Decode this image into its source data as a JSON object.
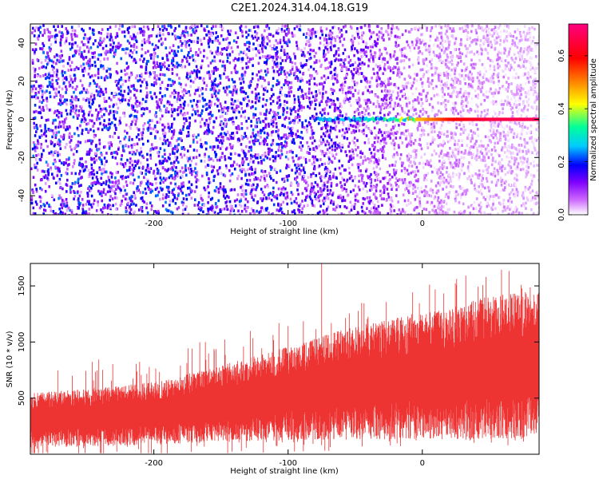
{
  "chart_data": [
    {
      "type": "heatmap",
      "title": "C2E1.2024.314.04.18.G19",
      "xlabel": "Height of straight line (km)",
      "ylabel": "Frequency (Hz)",
      "xlim": [
        -292,
        87
      ],
      "ylim": [
        -50,
        50
      ],
      "x_ticks": [
        -200,
        -100,
        0
      ],
      "y_ticks": [
        -40,
        -20,
        0,
        20,
        40
      ],
      "colorbar": {
        "label": "Normalized spectral amplitude",
        "range": [
          0.0,
          0.72
        ],
        "ticks": [
          0.0,
          0.2,
          0.4,
          0.6
        ],
        "colormap": [
          "#ffffff",
          "#cc66ff",
          "#7f00ff",
          "#0000ff",
          "#00ccff",
          "#00ff99",
          "#ffff00",
          "#ff8000",
          "#ff0000",
          "#ff0080"
        ]
      },
      "background_amplitude": [
        {
          "x": -292,
          "value": 0.16
        },
        {
          "x": -100,
          "value": 0.15
        },
        {
          "x": -40,
          "value": 0.1
        },
        {
          "x": 0,
          "value": 0.05
        },
        {
          "x": 87,
          "value": 0.03
        }
      ],
      "signal_line": {
        "frequency": 0,
        "points": [
          {
            "x": -80,
            "value": 0.22
          },
          {
            "x": -60,
            "value": 0.28
          },
          {
            "x": -40,
            "value": 0.3
          },
          {
            "x": -20,
            "value": 0.38
          },
          {
            "x": -5,
            "value": 0.45
          },
          {
            "x": 20,
            "value": 0.58
          },
          {
            "x": 50,
            "value": 0.66
          },
          {
            "x": 87,
            "value": 0.68
          }
        ]
      }
    },
    {
      "type": "area",
      "xlabel": "Height of straight line (km)",
      "ylabel": "SNR (10 * v/v)",
      "xlim": [
        -292,
        87
      ],
      "ylim": [
        0,
        1700
      ],
      "x_ticks": [
        -200,
        -100,
        0
      ],
      "y_ticks": [
        500,
        1000,
        1500
      ],
      "color": "#ee3333",
      "envelope": [
        {
          "x": -292,
          "lower": 80,
          "upper": 520
        },
        {
          "x": -250,
          "lower": 90,
          "upper": 560
        },
        {
          "x": -200,
          "lower": 110,
          "upper": 620
        },
        {
          "x": -150,
          "lower": 140,
          "upper": 760
        },
        {
          "x": -100,
          "lower": 160,
          "upper": 920
        },
        {
          "x": -50,
          "lower": 180,
          "upper": 1100
        },
        {
          "x": 0,
          "lower": 180,
          "upper": 1200
        },
        {
          "x": 50,
          "lower": 190,
          "upper": 1350
        },
        {
          "x": 87,
          "lower": 200,
          "upper": 1400
        }
      ],
      "peak": {
        "x": -75,
        "y": 1720
      }
    }
  ]
}
